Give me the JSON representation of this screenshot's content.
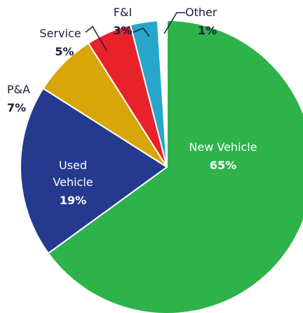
{
  "chart_data": {
    "type": "pie",
    "categories": [
      "New Vehicle",
      "Used Vehicle",
      "P&A",
      "Service",
      "F&I",
      "Other"
    ],
    "values": [
      65,
      19,
      7,
      5,
      3,
      1
    ],
    "value_labels": [
      "65%",
      "19%",
      "7%",
      "5%",
      "3%",
      "1%"
    ],
    "colors": [
      "#2db34a",
      "#253a8f",
      "#d9a60a",
      "#e8212b",
      "#27a6cb",
      "#ffffff"
    ]
  }
}
